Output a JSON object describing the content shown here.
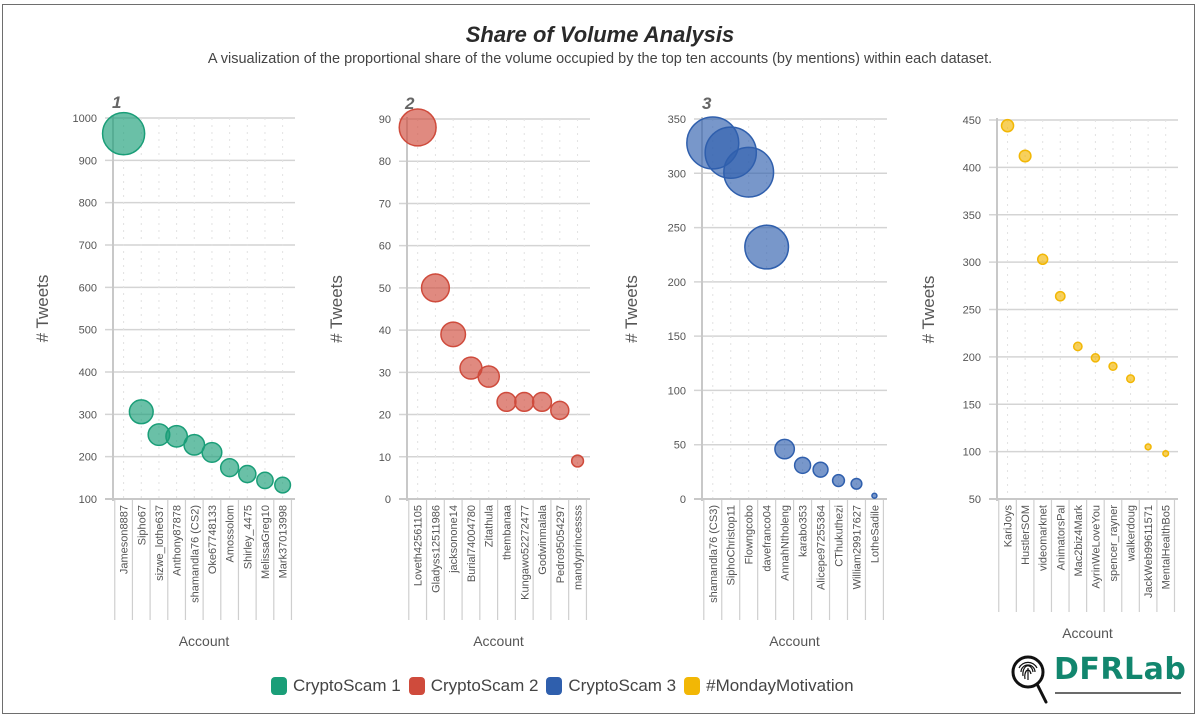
{
  "title": "Share of Volume Analysis",
  "subtitle": "A visualization of the proportional share of the volume occupied by the top ten accounts (by mentions) within each dataset.",
  "logo": {
    "text": "DFRLab",
    "icon": "fingerprint-magnifier-icon"
  },
  "legend": [
    {
      "label": "CryptoScam 1",
      "color": "#1a9e78"
    },
    {
      "label": "CryptoScam 2",
      "color": "#cf4b3c"
    },
    {
      "label": "CryptoScam 3",
      "color": "#2f5fad"
    },
    {
      "label": "#MondayMotivation",
      "color": "#f2b705"
    }
  ],
  "chart_data": [
    {
      "type": "scatter",
      "panel_label": "1",
      "series_name": "CryptoScam 1",
      "color": "#1a9e78",
      "xlabel": "Account",
      "ylabel": "# Tweets",
      "ylim": [
        100,
        1000
      ],
      "yticks": [
        100,
        200,
        300,
        400,
        500,
        600,
        700,
        800,
        900,
        1000
      ],
      "categories": [
        "Jameson8887",
        "Sipho67",
        "sizwe_lothe637",
        "Anthony87878",
        "shamandla76 (CS2)",
        "Oke67748133",
        "Amossolom",
        "Shirley_4475",
        "MelissaGreg10",
        "Mark37013998"
      ],
      "values": [
        963,
        306,
        252,
        248,
        228,
        210,
        174,
        159,
        144,
        133
      ],
      "grid": true
    },
    {
      "type": "scatter",
      "panel_label": "2",
      "series_name": "CryptoScam 2",
      "color": "#cf4b3c",
      "xlabel": "Account",
      "ylabel": "# Tweets",
      "ylim": [
        0,
        90
      ],
      "yticks": [
        0,
        10,
        20,
        30,
        40,
        50,
        60,
        70,
        80,
        90
      ],
      "categories": [
        "Loveth42561105",
        "Gladyss12511986",
        "jacksonone14",
        "Burial74004780",
        "Zitathula",
        "thembanaa",
        "Kungawo52272477",
        "Godwinmalala",
        "Pedro95054297",
        "mandyprincessss"
      ],
      "values": [
        88,
        50,
        39,
        31,
        29,
        23,
        23,
        23,
        21,
        9
      ],
      "grid": true
    },
    {
      "type": "scatter",
      "panel_label": "3",
      "series_name": "CryptoScam 3",
      "color": "#2f5fad",
      "xlabel": "Account",
      "ylabel": "# Tweets",
      "ylim": [
        0,
        350
      ],
      "yticks": [
        0,
        50,
        100,
        150,
        200,
        250,
        300,
        350
      ],
      "categories": [
        "shamandla76 (CS3)",
        "SiphoChristop11",
        "Flowngcobo",
        "davefranco04",
        "AnnahNtholeng",
        "karabo353",
        "Alicepe97255364",
        "CThukuthezi",
        "William29917627",
        "LotheSadile"
      ],
      "values": [
        328,
        319,
        301,
        232,
        46,
        31,
        27,
        17,
        14,
        3
      ],
      "grid": true
    },
    {
      "type": "scatter",
      "panel_label": "",
      "series_name": "#MondayMotivation",
      "color": "#f2b705",
      "xlabel": "Account",
      "ylabel": "# Tweets",
      "ylim": [
        50,
        450
      ],
      "yticks": [
        50,
        100,
        150,
        200,
        250,
        300,
        350,
        400,
        450
      ],
      "categories": [
        "KariJoys",
        "HustlerSOM",
        "videomarknet",
        "AnimatorsPal",
        "Mac2biz4Mark",
        "AyrinWeLoveYou",
        "spencer_rayner",
        "walkerdoug",
        "JackWeb99611571",
        "MentalHealthBo5"
      ],
      "values": [
        444,
        412,
        303,
        264,
        211,
        199,
        190,
        177,
        105,
        98
      ],
      "grid": true
    }
  ]
}
